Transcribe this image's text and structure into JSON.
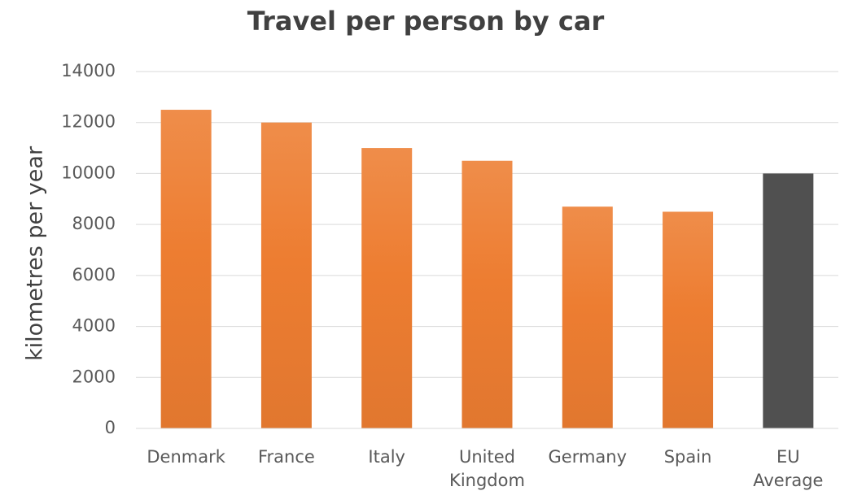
{
  "chart_data": {
    "type": "bar",
    "title": "Travel per person by car",
    "y_label": "kilometres per year",
    "categories": [
      "Denmark",
      "France",
      "Italy",
      "United Kingdom",
      "Germany",
      "Spain",
      "EU Average"
    ],
    "values": [
      12500,
      12000,
      11000,
      10500,
      8700,
      8500,
      10000
    ],
    "colors": [
      "#ed7d31",
      "#ed7d31",
      "#ed7d31",
      "#ed7d31",
      "#ed7d31",
      "#ed7d31",
      "#505050"
    ],
    "ylim": [
      0,
      14000
    ],
    "yticks": [
      0,
      2000,
      4000,
      6000,
      8000,
      10000,
      12000,
      14000
    ],
    "grid": true
  }
}
